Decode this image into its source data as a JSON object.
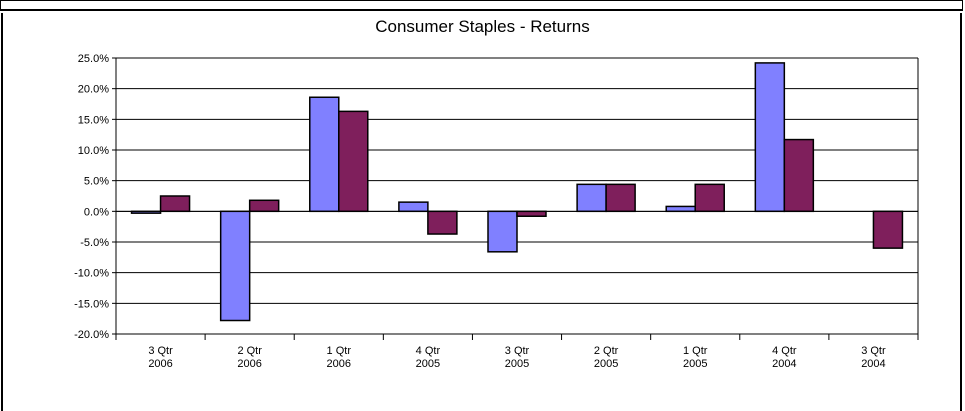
{
  "chart_data": {
    "type": "bar",
    "title": "Consumer Staples  -  Returns",
    "categories": [
      [
        "3 Qtr",
        "2006"
      ],
      [
        "2 Qtr",
        "2006"
      ],
      [
        "1 Qtr",
        "2006"
      ],
      [
        "4 Qtr",
        "2005"
      ],
      [
        "3 Qtr",
        "2005"
      ],
      [
        "2 Qtr",
        "2005"
      ],
      [
        "1 Qtr",
        "2005"
      ],
      [
        "4 Qtr",
        "2004"
      ],
      [
        "3 Qtr",
        "2004"
      ]
    ],
    "series": [
      {
        "color": "#8080FF",
        "values": [
          -0.3,
          -17.8,
          18.6,
          1.5,
          -6.6,
          4.4,
          0.8,
          24.2,
          0.0
        ]
      },
      {
        "color": "#7F1F5C",
        "values": [
          2.5,
          1.8,
          16.3,
          -3.7,
          -0.8,
          4.4,
          4.4,
          11.7,
          -6.0
        ]
      }
    ],
    "ylim": [
      -20,
      25
    ],
    "ytick_step": 5,
    "ytick_format": "percent_1dp",
    "grid": true,
    "legend": "none"
  }
}
